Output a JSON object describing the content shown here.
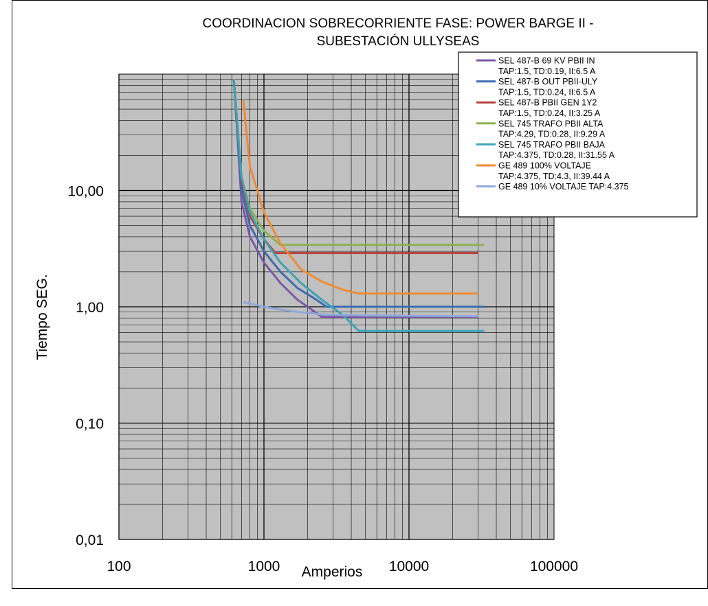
{
  "chart_data": {
    "type": "line",
    "title_line1": "COORDINACION SOBRECORRIENTE FASE: POWER BARGE II -",
    "title_line2": "SUBESTACIÓN ULLYSEAS",
    "xlabel": "Amperios",
    "ylabel": "Tiempo SEG.",
    "x_scale": "log",
    "y_scale": "log",
    "xlim": [
      100,
      100000
    ],
    "ylim": [
      0.01,
      100
    ],
    "x_ticks": [
      {
        "value": 100,
        "label": "100"
      },
      {
        "value": 1000,
        "label": "1000"
      },
      {
        "value": 10000,
        "label": "10000"
      },
      {
        "value": 100000,
        "label": "100000"
      }
    ],
    "y_ticks": [
      {
        "value": 0.01,
        "label": "0,01"
      },
      {
        "value": 0.1,
        "label": "0,10"
      },
      {
        "value": 1,
        "label": "1,00"
      },
      {
        "value": 10,
        "label": "10,00"
      }
    ],
    "grid": true,
    "plot_background": "#c0c0c0",
    "legend_position": "top-right",
    "series": [
      {
        "name": "SEL 487-B 69 KV PBII IN",
        "detail": "TAP:1.5, TD:0.19, II:6.5 A",
        "color": "#7a58a8",
        "points": [
          [
            620,
            90
          ],
          [
            700,
            8
          ],
          [
            800,
            4
          ],
          [
            1000,
            2.4
          ],
          [
            1300,
            1.6
          ],
          [
            1700,
            1.15
          ],
          [
            2200,
            0.92
          ],
          [
            2500,
            0.82
          ],
          [
            30000,
            0.82
          ]
        ]
      },
      {
        "name": "SEL 487-B OUT PBII-ULY",
        "detail": "TAP:1.5, TD:0.24, II:6.5 A",
        "color": "#3d6bb0",
        "points": [
          [
            620,
            90
          ],
          [
            700,
            10
          ],
          [
            800,
            5
          ],
          [
            1000,
            3
          ],
          [
            1300,
            2
          ],
          [
            1700,
            1.45
          ],
          [
            2300,
            1.15
          ],
          [
            2700,
            1.0
          ],
          [
            33000,
            1.0
          ]
        ]
      },
      {
        "name": "SEL 487-B PBII GEN 1Y2",
        "detail": "TAP:1.5, TD:0.24, II:3.25 A",
        "color": "#b8403c",
        "points": [
          [
            620,
            90
          ],
          [
            700,
            12
          ],
          [
            800,
            6
          ],
          [
            1000,
            3.8
          ],
          [
            1200,
            2.9
          ],
          [
            30000,
            2.9
          ]
        ]
      },
      {
        "name": "SEL 745 TRAFO PBII ALTA",
        "detail": "TAP:4.29, TD:0.28, II:9.29 A",
        "color": "#8db050",
        "points": [
          [
            620,
            90
          ],
          [
            700,
            13
          ],
          [
            800,
            7
          ],
          [
            1000,
            4.5
          ],
          [
            1300,
            3.4
          ],
          [
            33000,
            3.4
          ]
        ]
      },
      {
        "name": "SEL 745 TRAFO PBII BAJA",
        "detail": "TAP:4.375, TD:0.28, II:31.55 A",
        "color": "#3ba3b8",
        "points": [
          [
            620,
            90
          ],
          [
            700,
            13
          ],
          [
            800,
            6.5
          ],
          [
            1000,
            3.8
          ],
          [
            1300,
            2.4
          ],
          [
            1800,
            1.6
          ],
          [
            2500,
            1.15
          ],
          [
            3500,
            0.85
          ],
          [
            4500,
            0.62
          ],
          [
            33000,
            0.62
          ]
        ]
      },
      {
        "name": "GE 489 100% VOLTAJE",
        "detail": "TAP:4.375, TD:4.3, II:39.44 A",
        "color": "#f08a30",
        "points": [
          [
            720,
            60
          ],
          [
            800,
            16
          ],
          [
            1000,
            6.5
          ],
          [
            1300,
            3.5
          ],
          [
            1800,
            2.1
          ],
          [
            2500,
            1.65
          ],
          [
            3500,
            1.4
          ],
          [
            4500,
            1.3
          ],
          [
            30000,
            1.3
          ]
        ]
      },
      {
        "name": "GE 489 10% VOLTAJE TAP:4.375",
        "detail": "",
        "color": "#90a8d8",
        "points": [
          [
            720,
            1.1
          ],
          [
            1000,
            1.0
          ],
          [
            1500,
            0.92
          ],
          [
            2500,
            0.86
          ],
          [
            5000,
            0.84
          ],
          [
            30000,
            0.83
          ]
        ]
      }
    ]
  }
}
